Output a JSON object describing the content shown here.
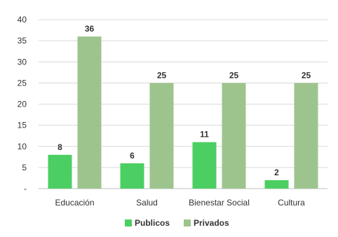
{
  "chart_data": {
    "type": "bar",
    "categories": [
      "Educación",
      "Salud",
      "Bienestar Social",
      "Cultura"
    ],
    "series": [
      {
        "name": "Publicos",
        "values": [
          8,
          6,
          11,
          2
        ],
        "color": "#4ccf62"
      },
      {
        "name": "Privados",
        "values": [
          36,
          25,
          25,
          25
        ],
        "color": "#9dc48d"
      }
    ],
    "data_labels": {
      "Publicos": [
        "8",
        "6",
        "11",
        "2"
      ],
      "Privados": [
        "36",
        "25",
        "25",
        "25"
      ]
    },
    "y_ticks": [
      "-",
      "5",
      "10",
      "15",
      "20",
      "25",
      "30",
      "35",
      "40"
    ],
    "ylim": [
      0,
      40
    ],
    "grid": true,
    "legend_position": "bottom",
    "title": "",
    "xlabel": "",
    "ylabel": ""
  }
}
